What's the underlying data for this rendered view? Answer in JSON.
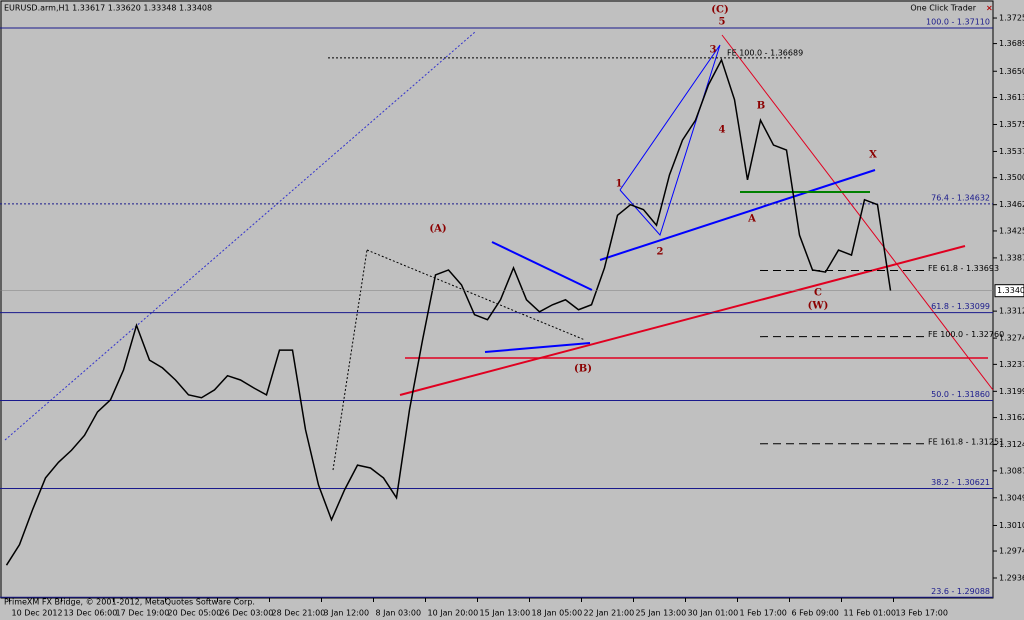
{
  "chart_data": {
    "type": "line",
    "title": "EURUSD.arm,H1  1.33617 1.33620 1.33348 1.33408",
    "panel_label": "One Click Trader",
    "footer": "PrimeXM FX Bridge, © 2001-2012, MetaQuotes Software Corp.",
    "current_price": 1.33408,
    "categories": [
      null,
      "10 Dec 2012",
      null,
      null,
      null,
      "13 Dec 06:00",
      null,
      null,
      null,
      "17 Dec 19:00",
      null,
      null,
      null,
      "20 Dec 05:00",
      null,
      null,
      null,
      "26 Dec 03:00",
      null,
      null,
      null,
      "28 Dec 21:00",
      null,
      null,
      null,
      "3 Jan 12:00",
      null,
      null,
      null,
      "8 Jan 03:00",
      null,
      null,
      null,
      "10 Jan 20:00",
      null,
      null,
      null,
      "15 Jan 13:00",
      null,
      null,
      null,
      "18 Jan 05:00",
      null,
      null,
      null,
      "22 Jan 21:00",
      null,
      null,
      null,
      "25 Jan 13:00",
      null,
      null,
      null,
      "30 Jan 01:00",
      null,
      null,
      null,
      "1 Feb 17:00",
      null,
      null,
      null,
      "6 Feb 09:00",
      null,
      null,
      null,
      "11 Feb 01:00",
      null,
      null,
      null,
      "13 Feb 17:00",
      null,
      null,
      null,
      null,
      null,
      null
    ],
    "series": [
      {
        "name": "EURUSD",
        "color": "#000000",
        "values": [
          1.2954,
          1.2983,
          1.3032,
          1.3077,
          1.3099,
          1.3116,
          1.3137,
          1.317,
          1.3187,
          1.3229,
          1.3292,
          1.3243,
          1.3232,
          1.3215,
          1.3194,
          1.319,
          1.3201,
          1.3221,
          1.3215,
          1.3204,
          1.3194,
          1.3257,
          1.3257,
          1.3145,
          1.3067,
          1.3018,
          1.306,
          1.3095,
          1.3091,
          1.3077,
          1.3049,
          1.3173,
          1.3271,
          1.3363,
          1.337,
          1.3349,
          1.3307,
          1.33,
          1.3328,
          1.3373,
          1.3328,
          1.3311,
          1.3321,
          1.3328,
          1.3314,
          1.3321,
          1.3373,
          1.3447,
          1.3462,
          1.3455,
          1.3433,
          1.3504,
          1.3553,
          1.3581,
          1.3631,
          1.3666,
          1.361,
          1.3497,
          1.3581,
          1.3546,
          1.3539,
          1.3419,
          1.337,
          1.3367,
          1.3398,
          1.3391,
          1.3469,
          1.3462,
          1.3341,
          null,
          null,
          null,
          null,
          null,
          null,
          null
        ]
      }
    ],
    "ylim": [
      1.29078,
      1.37504
    ],
    "yticks": [
      {
        "value": 1.3725,
        "label": "1.37250"
      },
      {
        "value": 1.3689,
        "label": "1.36890"
      },
      {
        "value": 1.365,
        "label": "1.36500"
      },
      {
        "value": 1.3613,
        "label": "1.36130"
      },
      {
        "value": 1.3575,
        "label": "1.35750"
      },
      {
        "value": 1.3537,
        "label": "1.35370"
      },
      {
        "value": 1.35,
        "label": "1.35000"
      },
      {
        "value": 1.3462,
        "label": "1.34620"
      },
      {
        "value": 1.3425,
        "label": "1.34250"
      },
      {
        "value": 1.3387,
        "label": "1.33870"
      },
      {
        "value": 1.3312,
        "label": "1.33120"
      },
      {
        "value": 1.3274,
        "label": "1.32740"
      },
      {
        "value": 1.3237,
        "label": "1.32370"
      },
      {
        "value": 1.3199,
        "label": "1.31990"
      },
      {
        "value": 1.3162,
        "label": "1.31620"
      },
      {
        "value": 1.3124,
        "label": "1.31240"
      },
      {
        "value": 1.3087,
        "label": "1.30870"
      },
      {
        "value": 1.3049,
        "label": "1.30490"
      },
      {
        "value": 1.301,
        "label": "1.30100"
      },
      {
        "value": 1.2974,
        "label": "1.29740"
      },
      {
        "value": 1.2936,
        "label": "1.29360"
      }
    ],
    "levels": [
      {
        "label": "100.0 - 1.37110",
        "value": 1.3711
      },
      {
        "label": "76.4 - 1.34632",
        "value": 1.34632
      },
      {
        "label": "61.8 - 1.33099",
        "value": 1.33099
      },
      {
        "label": "50.0 - 1.31860",
        "value": 1.3186
      },
      {
        "label": "38.2 - 1.30621",
        "value": 1.30621
      },
      {
        "label": "23.6 - 1.29088",
        "value": 1.29088
      },
      {
        "label": "FE 100.0 - 1.36689",
        "value": 1.36689
      },
      {
        "label": "FE 61.8 - 1.33693",
        "value": 1.33693
      },
      {
        "label": "FE 100.0 - 1.32760",
        "value": 1.3276
      },
      {
        "label": "FE 161.8 - 1.31251",
        "value": 1.31251
      }
    ],
    "annotations": [
      "(C)",
      "5",
      "3",
      "4",
      "1",
      "2",
      "B",
      "A",
      "X",
      "C",
      "(W)",
      "(A)",
      "(B)"
    ]
  }
}
